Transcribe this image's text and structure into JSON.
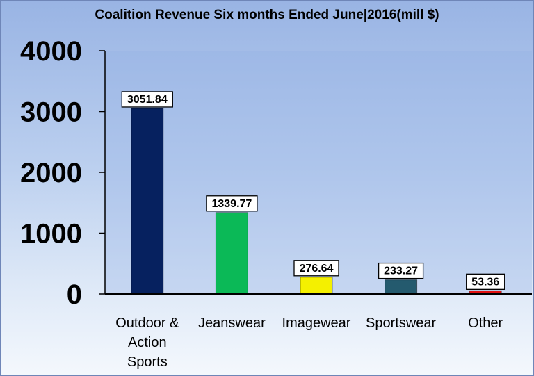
{
  "chart_data": {
    "type": "bar",
    "title": "Coalition Revenue Six months Ended June|2016(mill $)",
    "categories": [
      [
        "Outdoor &",
        "Action",
        "Sports"
      ],
      [
        "Jeanswear"
      ],
      [
        "Imagewear"
      ],
      [
        "Sportswear"
      ],
      [
        "Other"
      ]
    ],
    "values": [
      3051.84,
      1339.77,
      276.64,
      233.27,
      53.36
    ],
    "data_labels": [
      "3051.84",
      "1339.77",
      "276.64",
      "233.27",
      "53.36"
    ],
    "bar_colors": [
      "#06215f",
      "#0bb957",
      "#f4f000",
      "#245a6e",
      "#e01010"
    ],
    "ylim": [
      0,
      4000
    ],
    "yticks": [
      0,
      1000,
      2000,
      3000,
      4000
    ],
    "grid": false,
    "legend": "none"
  }
}
